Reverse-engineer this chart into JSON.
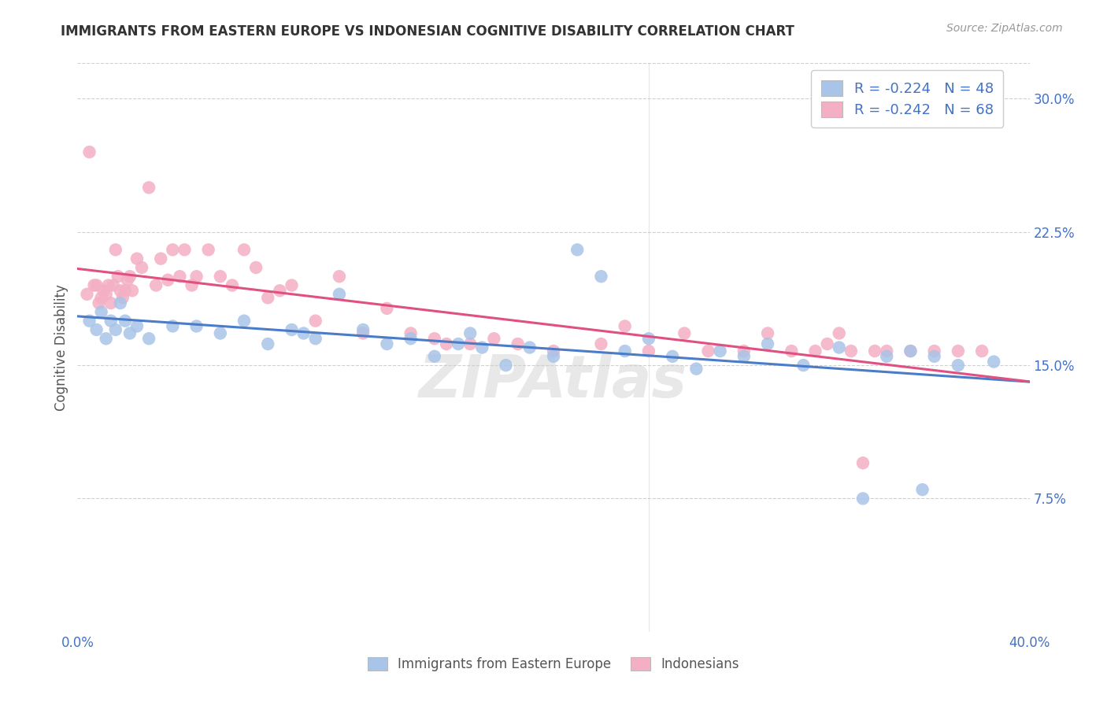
{
  "title": "IMMIGRANTS FROM EASTERN EUROPE VS INDONESIAN COGNITIVE DISABILITY CORRELATION CHART",
  "source": "Source: ZipAtlas.com",
  "ylabel": "Cognitive Disability",
  "xlim": [
    0.0,
    0.4
  ],
  "ylim": [
    0.0,
    0.32
  ],
  "ytick_vals": [
    0.075,
    0.15,
    0.225,
    0.3
  ],
  "ytick_labels": [
    "7.5%",
    "15.0%",
    "22.5%",
    "30.0%"
  ],
  "xtick_vals": [
    0.0,
    0.08,
    0.16,
    0.24,
    0.32,
    0.4
  ],
  "xtick_labels": [
    "0.0%",
    "",
    "",
    "",
    "",
    "40.0%"
  ],
  "grid_color": "#d0d0d0",
  "bg_color": "#ffffff",
  "blue_scatter_color": "#a8c4e8",
  "pink_scatter_color": "#f4afc4",
  "blue_line_color": "#4a7cc7",
  "pink_line_color": "#e05080",
  "blue_R": -0.224,
  "blue_N": 48,
  "pink_R": -0.242,
  "pink_N": 68,
  "legend_label_blue": "Immigrants from Eastern Europe",
  "legend_label_pink": "Indonesians",
  "watermark": "ZIPAtlas",
  "axis_tick_color": "#4472c4",
  "title_color": "#333333",
  "source_color": "#999999",
  "ylabel_color": "#555555",
  "blue_x": [
    0.005,
    0.008,
    0.01,
    0.012,
    0.014,
    0.016,
    0.018,
    0.02,
    0.022,
    0.025,
    0.03,
    0.04,
    0.05,
    0.06,
    0.07,
    0.08,
    0.09,
    0.095,
    0.1,
    0.11,
    0.12,
    0.13,
    0.14,
    0.15,
    0.16,
    0.165,
    0.17,
    0.18,
    0.19,
    0.2,
    0.21,
    0.22,
    0.23,
    0.24,
    0.25,
    0.26,
    0.27,
    0.28,
    0.29,
    0.305,
    0.32,
    0.33,
    0.34,
    0.35,
    0.355,
    0.36,
    0.37,
    0.385
  ],
  "blue_y": [
    0.175,
    0.17,
    0.18,
    0.165,
    0.175,
    0.17,
    0.185,
    0.175,
    0.168,
    0.172,
    0.165,
    0.172,
    0.172,
    0.168,
    0.175,
    0.162,
    0.17,
    0.168,
    0.165,
    0.19,
    0.17,
    0.162,
    0.165,
    0.155,
    0.162,
    0.168,
    0.16,
    0.15,
    0.16,
    0.155,
    0.215,
    0.2,
    0.158,
    0.165,
    0.155,
    0.148,
    0.158,
    0.155,
    0.162,
    0.15,
    0.16,
    0.075,
    0.155,
    0.158,
    0.08,
    0.155,
    0.15,
    0.152
  ],
  "pink_x": [
    0.004,
    0.005,
    0.007,
    0.008,
    0.009,
    0.01,
    0.011,
    0.012,
    0.013,
    0.014,
    0.015,
    0.016,
    0.017,
    0.018,
    0.019,
    0.02,
    0.021,
    0.022,
    0.023,
    0.025,
    0.027,
    0.03,
    0.033,
    0.035,
    0.038,
    0.04,
    0.043,
    0.045,
    0.048,
    0.05,
    0.055,
    0.06,
    0.065,
    0.07,
    0.075,
    0.08,
    0.085,
    0.09,
    0.1,
    0.11,
    0.12,
    0.13,
    0.14,
    0.15,
    0.155,
    0.165,
    0.175,
    0.185,
    0.2,
    0.22,
    0.23,
    0.24,
    0.255,
    0.265,
    0.28,
    0.29,
    0.3,
    0.31,
    0.315,
    0.32,
    0.325,
    0.33,
    0.335,
    0.34,
    0.35,
    0.36,
    0.37,
    0.38
  ],
  "pink_y": [
    0.19,
    0.27,
    0.195,
    0.195,
    0.185,
    0.188,
    0.192,
    0.19,
    0.195,
    0.185,
    0.195,
    0.215,
    0.2,
    0.192,
    0.188,
    0.192,
    0.198,
    0.2,
    0.192,
    0.21,
    0.205,
    0.25,
    0.195,
    0.21,
    0.198,
    0.215,
    0.2,
    0.215,
    0.195,
    0.2,
    0.215,
    0.2,
    0.195,
    0.215,
    0.205,
    0.188,
    0.192,
    0.195,
    0.175,
    0.2,
    0.168,
    0.182,
    0.168,
    0.165,
    0.162,
    0.162,
    0.165,
    0.162,
    0.158,
    0.162,
    0.172,
    0.158,
    0.168,
    0.158,
    0.158,
    0.168,
    0.158,
    0.158,
    0.162,
    0.168,
    0.158,
    0.095,
    0.158,
    0.158,
    0.158,
    0.158,
    0.158,
    0.158
  ]
}
